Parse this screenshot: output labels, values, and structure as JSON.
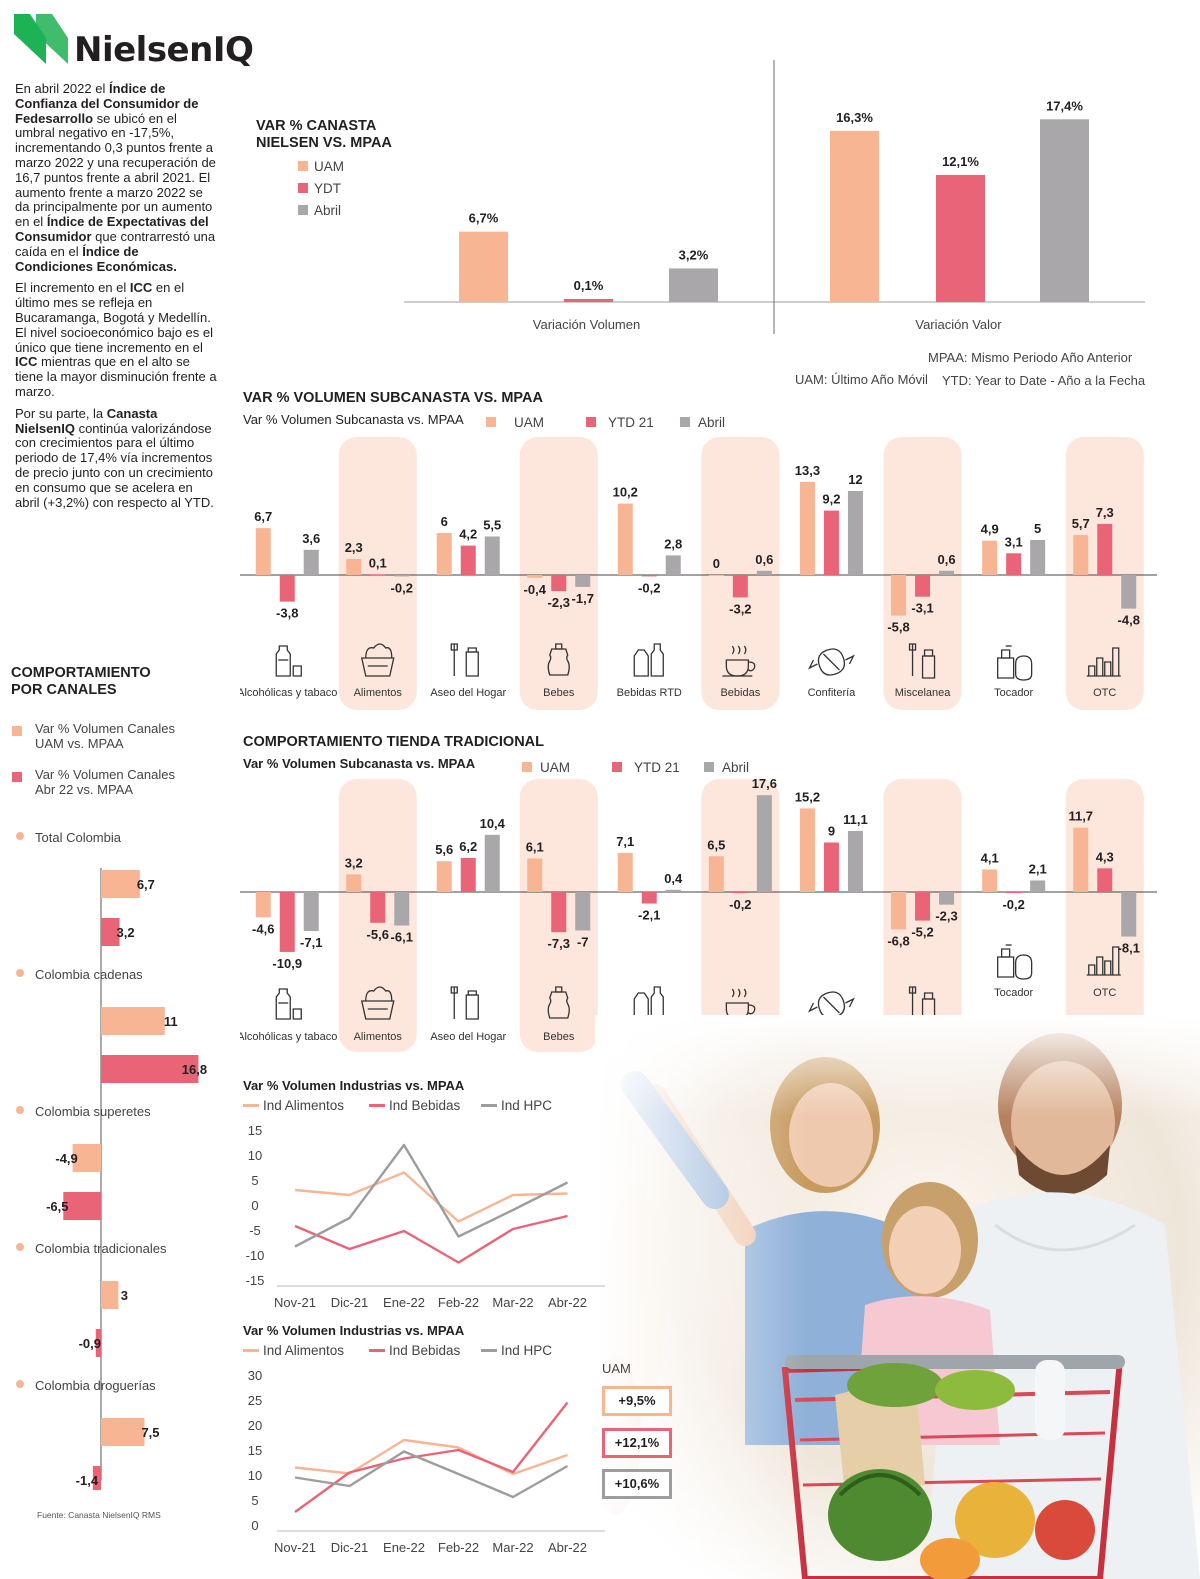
{
  "brand": {
    "name": "NielsenIQ",
    "green": "#1db254"
  },
  "colors": {
    "uam": "#f7b594",
    "ytd": "#ea6478",
    "abril": "#a9a7a9",
    "highlight": "#fde6dc",
    "line_gray": "#9d9d9d"
  },
  "intro": {
    "p1": [
      {
        "t": "En abril 2022 el ",
        "b": false
      },
      {
        "t": "Índice de Confianza del Consumidor de Fedesarrollo",
        "b": true
      },
      {
        "t": " se ubicó en el umbral negativo en -17,5%, incrementando 0,3 puntos frente a marzo 2022 y una recuperación de 16,7 puntos frente a abril 2021. El aumento frente a marzo 2022 se da principalmente por un aumento en el ",
        "b": false
      },
      {
        "t": "Índice de Expectativas del Consumidor",
        "b": true
      },
      {
        "t": " que contrarrestó una caída en el ",
        "b": false
      },
      {
        "t": "Índice de Condiciones Económicas.",
        "b": true
      }
    ],
    "p2": [
      {
        "t": "El incremento en el ",
        "b": false
      },
      {
        "t": "ICC",
        "b": true
      },
      {
        "t": " en el último mes se refleja en Bucaramanga, Bogotá y Medellín. El nivel socioeconómico bajo es el único que tiene incremento en el ",
        "b": false
      },
      {
        "t": "ICC",
        "b": true
      },
      {
        "t": " mientras que en el alto se tiene la mayor disminución frente a marzo.",
        "b": false
      }
    ],
    "p3": [
      {
        "t": "Por su parte, la ",
        "b": false
      },
      {
        "t": "Canasta NielsenIQ",
        "b": true
      },
      {
        "t": " continúa valorizándose con crecimientos para el último periodo de 17,4% vía incrementos de precio junto con un crecimiento en consumo que se acelera en abril (+3,2%) con respecto al YTD.",
        "b": false
      }
    ]
  },
  "canasta": {
    "title": "VAR % CANASTA NIELSEN VS. MPAA",
    "legend": [
      "UAM",
      "YDT",
      "Abril"
    ],
    "note1": "MPAA: Mismo Periodo Año Anterior",
    "note2": "UAM: Último Año Móvil",
    "note3": "YTD: Year to Date - Año a la Fecha"
  },
  "volumen_subcanasta": {
    "title": "VAR % VOLUMEN SUBCANASTA VS. MPAA",
    "subtitle": "Var % Volumen Subcanasta vs. MPAA",
    "legend": [
      "UAM",
      "YTD 21",
      "Abril"
    ]
  },
  "tienda": {
    "title": "COMPORTAMIENTO TIENDA TRADICIONAL",
    "subtitle": "Var % Volumen Subcanasta vs. MPAA",
    "legend": [
      "UAM",
      "YTD 21",
      "Abril"
    ]
  },
  "canales": {
    "title": "COMPORTAMIENTO POR CANALES",
    "legend1": "Var % Volumen Canales UAM vs. MPAA",
    "legend2": "Var % Volumen Canales Abr 22 vs. MPAA",
    "source": "Fuente: Canasta NielsenIQ RMS"
  },
  "industrias": {
    "title1": "Var % Volumen Industrias vs. MPAA",
    "title2": "Var % Volumen Industrias vs. MPAA",
    "legend": [
      "Ind Alimentos",
      "Ind Bebidas",
      "Ind HPC"
    ],
    "uam_label": "UAM",
    "uam_values": [
      "+9,5%",
      "+12,1%",
      "+10,6%"
    ]
  },
  "chart_data": [
    {
      "id": "canasta",
      "type": "bar",
      "title": "VAR % CANASTA NIELSEN VS. MPAA",
      "categories": [
        "Variación Volumen",
        "Variación Valor"
      ],
      "series": [
        {
          "name": "UAM",
          "values": [
            6.7,
            16.3
          ],
          "labels": [
            "6,7%",
            "16,3%"
          ]
        },
        {
          "name": "YDT",
          "values": [
            0.1,
            12.1
          ],
          "labels": [
            "0,1%",
            "12,1%"
          ]
        },
        {
          "name": "Abril",
          "values": [
            3.2,
            17.4
          ],
          "labels": [
            "3,2%",
            "17,4%"
          ]
        }
      ]
    },
    {
      "id": "subcanasta",
      "type": "bar",
      "title": "VAR % VOLUMEN SUBCANASTA VS. MPAA",
      "categories": [
        "Alcohólicas y tabaco",
        "Alimentos",
        "Aseo del Hogar",
        "Bebes",
        "Bebidas RTD",
        "Bebidas",
        "Confitería",
        "Miscelanea",
        "Tocador",
        "OTC"
      ],
      "highlighted": [
        1,
        3,
        5,
        7,
        9
      ],
      "series": [
        {
          "name": "UAM",
          "values": [
            6.7,
            2.3,
            6,
            -0.4,
            10.2,
            0,
            13.3,
            -5.8,
            4.9,
            5.7
          ],
          "labels": [
            "6,7",
            "2,3",
            "6",
            "-0,4",
            "10,2",
            "0",
            "13,3",
            "-5,8",
            "4,9",
            "5,7"
          ]
        },
        {
          "name": "YTD 21",
          "values": [
            -3.8,
            0.1,
            4.2,
            -2.3,
            -0.2,
            -3.2,
            9.2,
            -3.1,
            3.1,
            7.3
          ],
          "labels": [
            "-3,8",
            "0,1",
            "4,2",
            "-2,3",
            "-0,2",
            "-3,2",
            "9,2",
            "-3,1",
            "3,1",
            "7,3"
          ]
        },
        {
          "name": "Abril",
          "values": [
            3.6,
            -0.2,
            5.5,
            -1.7,
            2.8,
            0.6,
            12,
            0.6,
            5,
            -4.8
          ],
          "labels": [
            "3,6",
            "-0,2",
            "5,5",
            "-1,7",
            "2,8",
            "0,6",
            "12",
            "0,6",
            "5",
            "-4,8"
          ]
        }
      ]
    },
    {
      "id": "tienda",
      "type": "bar",
      "title": "COMPORTAMIENTO TIENDA TRADICIONAL",
      "categories": [
        "Alcohólicas y tabaco",
        "Alimentos",
        "Aseo del Hogar",
        "Bebes",
        "Bebidas RTD",
        "Bebidas",
        "Confitería",
        "Miscelanea",
        "Tocador",
        "OTC"
      ],
      "highlighted": [
        1,
        3,
        5,
        7,
        9
      ],
      "series": [
        {
          "name": "UAM",
          "values": [
            -4.6,
            3.2,
            5.6,
            6.1,
            7.1,
            6.5,
            15.2,
            -6.8,
            4.1,
            11.7
          ],
          "labels": [
            "-4,6",
            "3,2",
            "5,6",
            "6,1",
            "7,1",
            "6,5",
            "15,2",
            "-6,8",
            "4,1",
            "11,7"
          ]
        },
        {
          "name": "YTD 21",
          "values": [
            -10.9,
            -5.6,
            6.2,
            -7.3,
            -2.1,
            -0.2,
            9,
            -5.2,
            -0.2,
            4.3
          ],
          "labels": [
            "-10,9",
            "-5,6",
            "6,2",
            "-7,3",
            "-2,1",
            "-0,2",
            "9",
            "-5,2",
            "-0,2",
            "4,3"
          ]
        },
        {
          "name": "Abril",
          "values": [
            -7.1,
            -6.1,
            10.4,
            -7,
            0.4,
            17.6,
            11.1,
            -2.3,
            2.1,
            -8.1
          ],
          "labels": [
            "-7,1",
            "-6,1",
            "10,4",
            "-7",
            "0,4",
            "17,6",
            "11,1",
            "-2,3",
            "2,1",
            "-8,1"
          ]
        }
      ]
    },
    {
      "id": "canales",
      "type": "bar",
      "title": "COMPORTAMIENTO POR CANALES",
      "categories": [
        "Total Colombia",
        "Colombia cadenas",
        "Colombia superetes",
        "Colombia tradicionales",
        "Colombia droguerías"
      ],
      "series": [
        {
          "name": "Var % Volumen Canales UAM vs. MPAA",
          "values": [
            6.7,
            11,
            -4.9,
            3,
            7.5
          ],
          "labels": [
            "6,7",
            "11",
            "-4,9",
            "3",
            "7,5"
          ]
        },
        {
          "name": "Var % Volumen Canales Abr 22 vs. MPAA",
          "values": [
            3.2,
            16.8,
            -6.5,
            -0.9,
            -1.4
          ],
          "labels": [
            "3,2",
            "16,8",
            "-6,5",
            "-0,9",
            "-1,4"
          ]
        }
      ]
    },
    {
      "id": "industrias1",
      "type": "line",
      "title": "Var % Volumen Industrias vs. MPAA",
      "x": [
        "Nov-21",
        "Dic-21",
        "Ene-22",
        "Feb-22",
        "Mar-22",
        "Abr-22"
      ],
      "ylim": [
        -15,
        15
      ],
      "yticks": [
        15,
        10,
        5,
        0,
        -5,
        -10,
        -15
      ],
      "series": [
        {
          "name": "Ind Alimentos",
          "values": [
            3,
            2,
            6.5,
            -3.3,
            2,
            2.3
          ]
        },
        {
          "name": "Ind Bebidas",
          "values": [
            -4.2,
            -8.8,
            -5.2,
            -11.5,
            -4.8,
            -2.2
          ]
        },
        {
          "name": "Ind HPC",
          "values": [
            -8.3,
            -2.6,
            12,
            -6.3,
            -1,
            4.5
          ]
        }
      ]
    },
    {
      "id": "industrias2",
      "type": "line",
      "title": "Var % Volumen Industrias vs. MPAA",
      "x": [
        "Nov-21",
        "Dic-21",
        "Ene-22",
        "Feb-22",
        "Mar-22",
        "Abr-22"
      ],
      "ylim": [
        0,
        30
      ],
      "yticks": [
        30,
        25,
        20,
        15,
        10,
        5,
        0
      ],
      "series": [
        {
          "name": "Ind Alimentos",
          "values": [
            11.5,
            10.3,
            17,
            15.5,
            10.2,
            14
          ]
        },
        {
          "name": "Ind Bebidas",
          "values": [
            2.6,
            10.5,
            13.3,
            15,
            10.6,
            24.5
          ]
        },
        {
          "name": "Ind HPC",
          "values": [
            9.5,
            7.8,
            14.7,
            10.2,
            5.6,
            11.8
          ]
        }
      ]
    }
  ]
}
